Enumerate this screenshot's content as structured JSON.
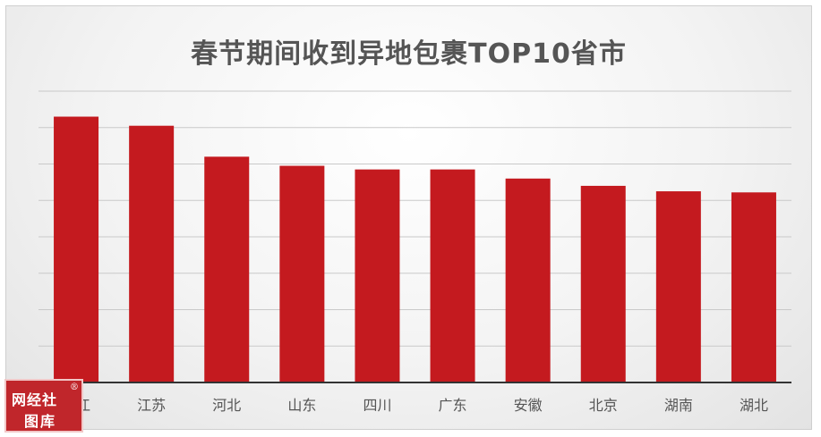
{
  "chart_data": {
    "type": "bar",
    "title": "春节期间收到异地包裹TOP10省市",
    "categories": [
      "浙江",
      "江苏",
      "河北",
      "山东",
      "四川",
      "广东",
      "安徽",
      "北京",
      "湖南",
      "湖北"
    ],
    "values": [
      7.3,
      7.05,
      6.2,
      5.95,
      5.85,
      5.85,
      5.6,
      5.4,
      5.25,
      5.22
    ],
    "ylim": [
      0,
      8
    ],
    "grid": true,
    "bar_color": "#c41a1f",
    "xlabel": "",
    "ylabel": ""
  },
  "watermark": {
    "line1": "网经社",
    "line2": "图库",
    "reg": "®"
  }
}
